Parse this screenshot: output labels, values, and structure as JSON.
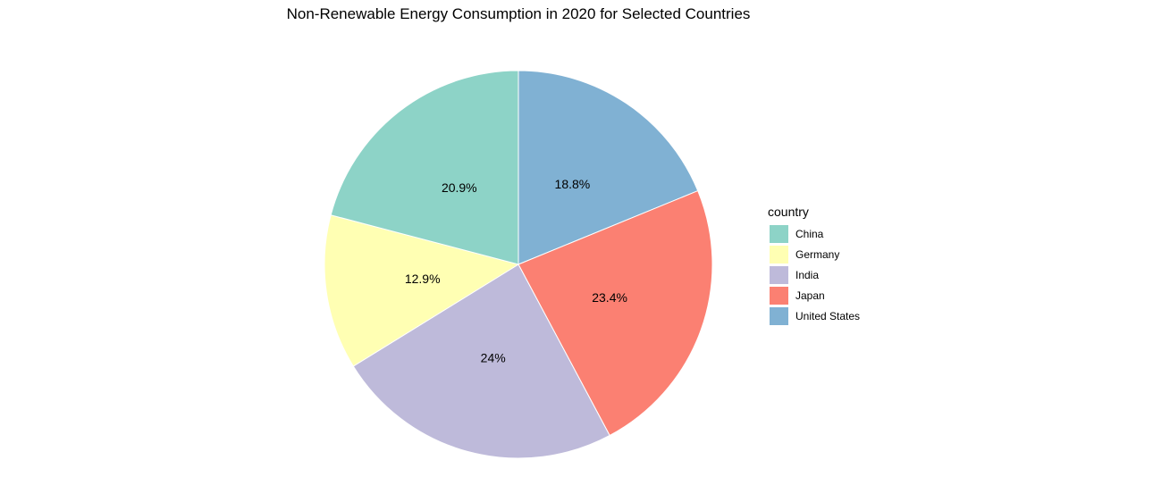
{
  "chart_data": {
    "type": "pie",
    "title": "Non-Renewable Energy Consumption in 2020 for Selected Countries",
    "legend": {
      "title": "country",
      "placement": "right"
    },
    "slices": [
      {
        "label": "United States",
        "value": 18.8,
        "display": "18.8%",
        "color": "#80B1D3"
      },
      {
        "label": "Japan",
        "value": 23.4,
        "display": "23.4%",
        "color": "#FB8072"
      },
      {
        "label": "India",
        "value": 24.0,
        "display": "24%",
        "color": "#BEBADA"
      },
      {
        "label": "Germany",
        "value": 12.9,
        "display": "12.9%",
        "color": "#FFFFB3"
      },
      {
        "label": "China",
        "value": 20.9,
        "display": "20.9%",
        "color": "#8DD3C7"
      }
    ],
    "legend_order": [
      "China",
      "Germany",
      "India",
      "Japan",
      "United States"
    ]
  }
}
